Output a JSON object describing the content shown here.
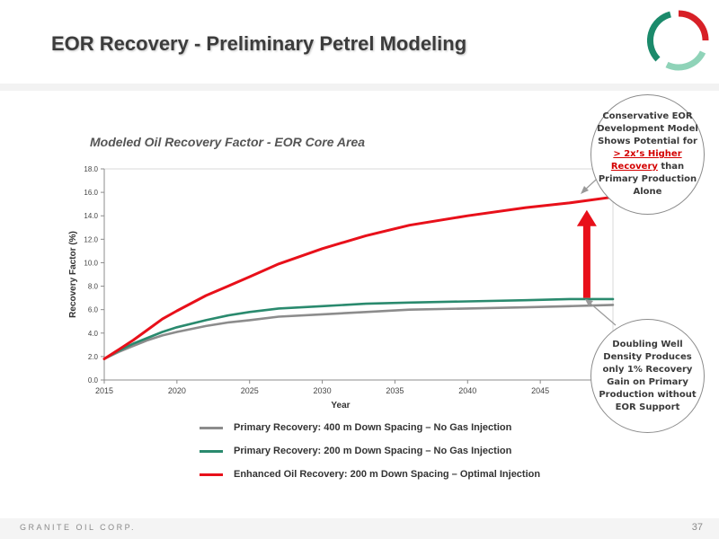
{
  "slide": {
    "title": "EOR Recovery - Preliminary Petrel Modeling",
    "footer_company": "GRANITE OIL CORP.",
    "page_number": "37",
    "logo_colors": [
      "#d72027",
      "#1b8a6b",
      "#8fd3b8"
    ]
  },
  "callouts": {
    "top": {
      "line1": "Conservative EOR",
      "line2": "Development Model",
      "line3": "Shows Potential for",
      "highlight1": "> 2x’s Higher",
      "highlight2": "Recovery",
      "line4": " than",
      "line5": "Primary Production",
      "line6": "Alone"
    },
    "bottom": {
      "line1": "Doubling Well",
      "line2": "Density Produces",
      "line3": "only 1% Recovery",
      "line4": "Gain on Primary",
      "line5": "Production without",
      "line6": "EOR Support"
    }
  },
  "chart_data": {
    "type": "line",
    "title": "Modeled Oil Recovery Factor - EOR Core Area",
    "xlabel": "Year",
    "ylabel": "Recovery Factor (%)",
    "xlim": [
      2015,
      2050
    ],
    "ylim": [
      0,
      18
    ],
    "x_ticks": [
      "2015",
      "2020",
      "2025",
      "2030",
      "2035",
      "2040",
      "2045"
    ],
    "y_ticks": [
      "0.0",
      "2.0",
      "4.0",
      "6.0",
      "8.0",
      "10.0",
      "12.0",
      "14.0",
      "16.0",
      "18.0"
    ],
    "grid": false,
    "legend_position": "bottom",
    "x": [
      2015,
      2016,
      2017,
      2018,
      2019,
      2020,
      2022,
      2023.5,
      2025,
      2027,
      2030,
      2033,
      2036,
      2040,
      2044,
      2047,
      2050
    ],
    "series": [
      {
        "name": "Primary Recovery: 400 m Down Spacing – No Gas Injection",
        "color": "#8c8c8c",
        "values": [
          1.8,
          2.4,
          2.9,
          3.4,
          3.8,
          4.1,
          4.6,
          4.9,
          5.1,
          5.4,
          5.6,
          5.8,
          6.0,
          6.1,
          6.2,
          6.3,
          6.4
        ]
      },
      {
        "name": "Primary Recovery: 200 m Down Spacing – No Gas Injection",
        "color": "#2a8a6e",
        "values": [
          1.8,
          2.5,
          3.1,
          3.6,
          4.1,
          4.5,
          5.1,
          5.5,
          5.8,
          6.1,
          6.3,
          6.5,
          6.6,
          6.7,
          6.8,
          6.9,
          6.9
        ]
      },
      {
        "name": "Enhanced Oil Recovery: 200 m Down Spacing – Optimal Injection",
        "color": "#e8101a",
        "values": [
          1.8,
          2.6,
          3.4,
          4.3,
          5.2,
          5.9,
          7.2,
          8.0,
          8.8,
          9.9,
          11.2,
          12.3,
          13.2,
          14.0,
          14.7,
          15.1,
          15.6
        ]
      }
    ],
    "annotation_arrow": {
      "x": 2048.2,
      "from_y": 7.0,
      "to_y": 14.5,
      "color": "#e8101a"
    }
  }
}
